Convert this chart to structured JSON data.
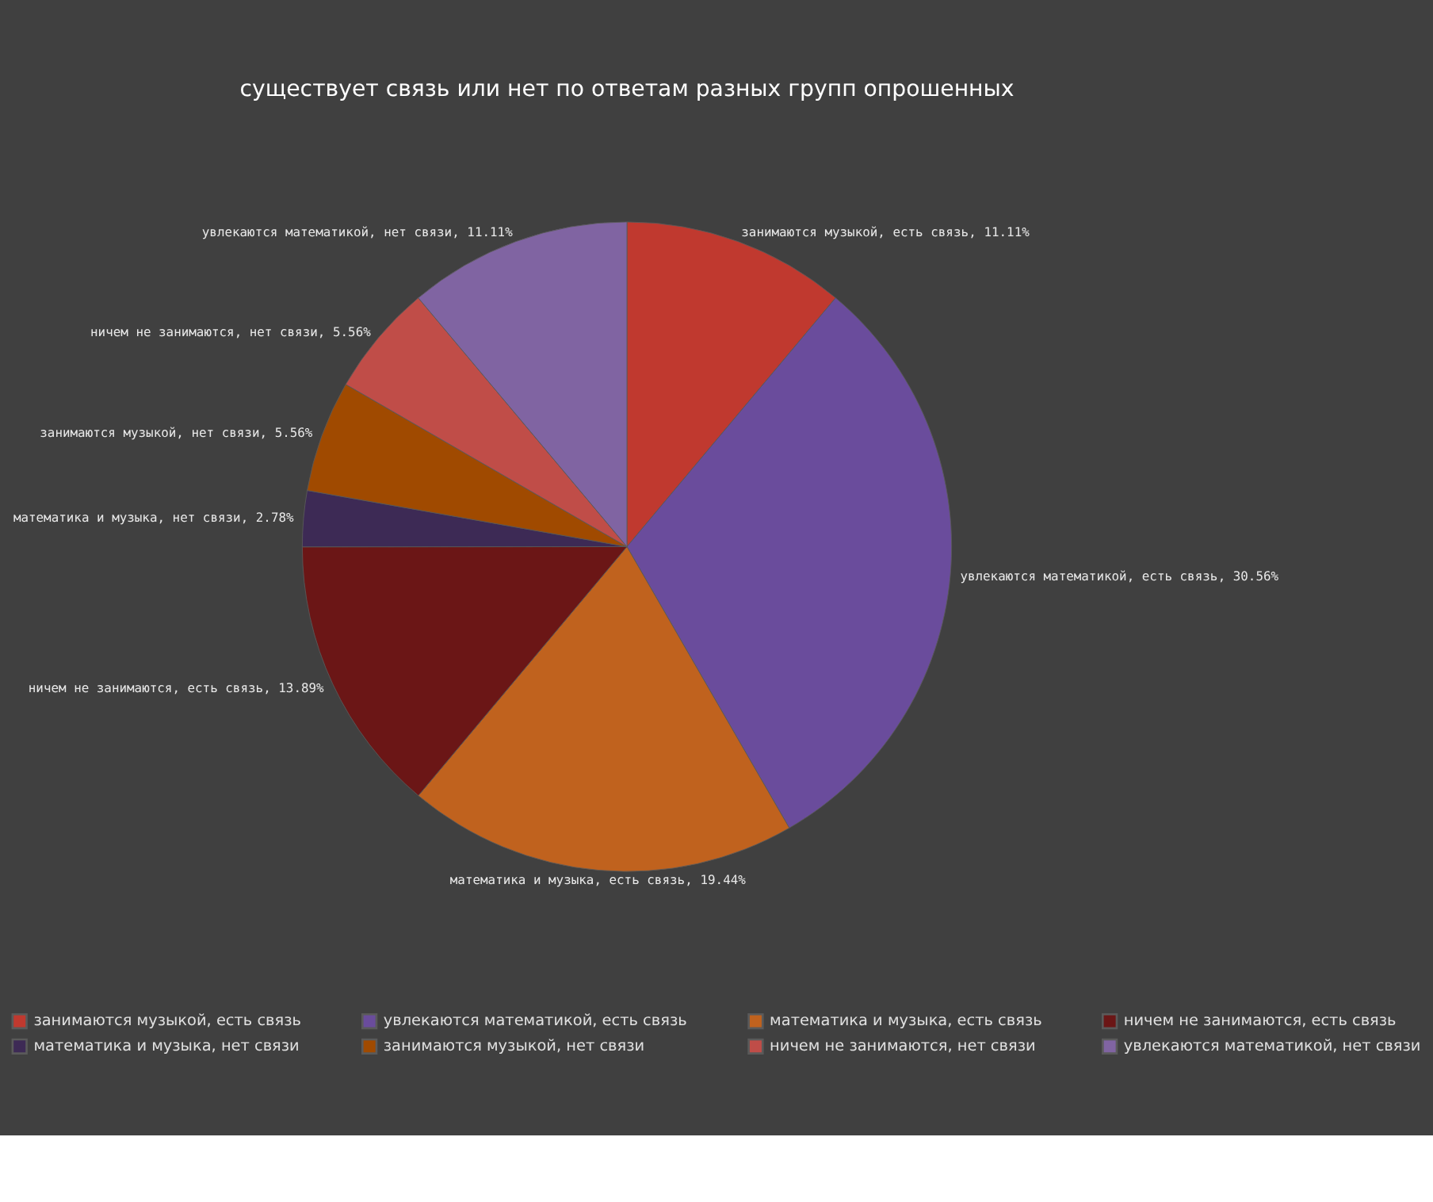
{
  "chart_data": {
    "type": "pie",
    "title": "существует связь или нет по ответам разных групп опрошенных",
    "categories": [
      "занимаются музыкой, есть связь",
      "увлекаются математикой, есть связь",
      "математика и музыка, есть связь",
      "ничем не занимаются, есть связь",
      "математика и музыка, нет связи",
      "занимаются музыкой, нет связи",
      "ничем не занимаются, нет связи",
      "увлекаются математикой, нет связи"
    ],
    "values": [
      11.11,
      30.56,
      19.44,
      13.89,
      2.78,
      5.56,
      5.56,
      11.11
    ],
    "colors": [
      "#c0392f",
      "#6a4c9c",
      "#c0621e",
      "#6b1616",
      "#3d2a55",
      "#a04a00",
      "#c04d48",
      "#8064a2"
    ],
    "value_labels": [
      ", 11.11%",
      ", 30.56%",
      ", 19.44%",
      ", 13.89%",
      ", 2.78%",
      ", 5.56%",
      ", 5.56%",
      ", 11.11%"
    ],
    "legend": "bottom"
  }
}
